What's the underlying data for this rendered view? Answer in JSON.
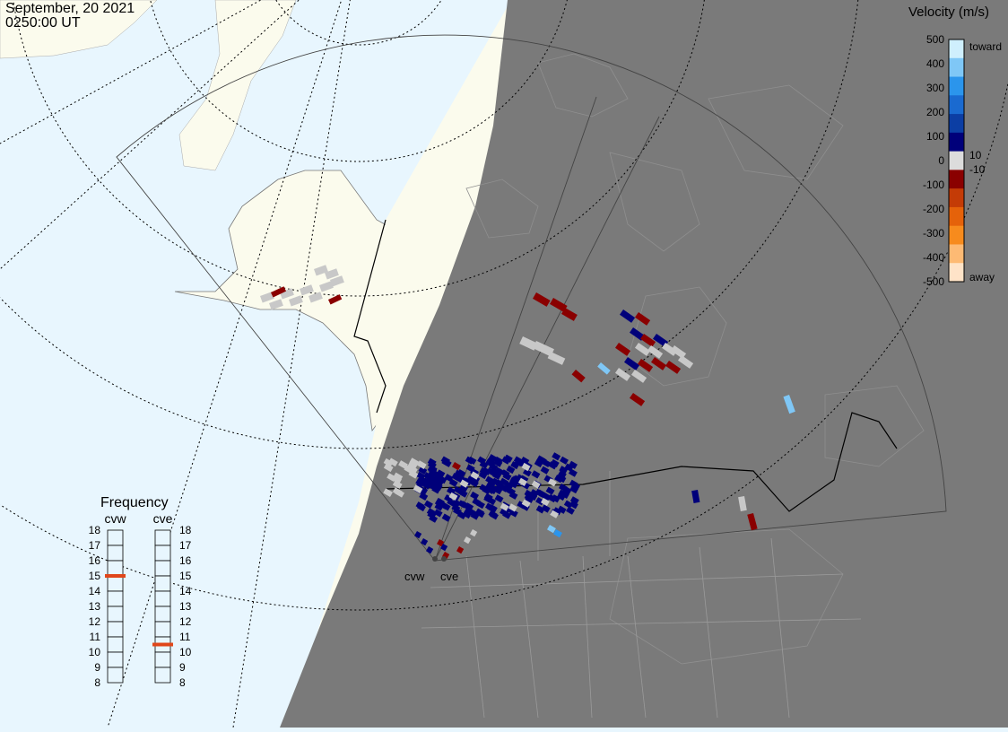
{
  "header": {
    "date": "September, 20 2021",
    "time": "0250:00 UT"
  },
  "legend": {
    "title": "Velocity (m/s)",
    "ticks": [
      "500",
      "400",
      "300",
      "200",
      "100",
      "0",
      "-100",
      "-200",
      "-300",
      "-400",
      "-500"
    ],
    "near_zero": [
      "10",
      "-10"
    ],
    "toward_label": "toward",
    "away_label": "away",
    "colors": [
      "#fee3c8",
      "#fdba74",
      "#f78b1d",
      "#e5620a",
      "#c43b06",
      "#8a0000",
      "#dcdcdc",
      "#00007a",
      "#0c3ea4",
      "#1a6ad0",
      "#2b95ec",
      "#7fc7f6",
      "#cfeffd"
    ]
  },
  "frequency": {
    "title": "Frequency",
    "radars": [
      {
        "name": "cvw",
        "value_mhz": 15
      },
      {
        "name": "cve",
        "value_mhz": 10.5
      }
    ],
    "scale": [
      "18",
      "17",
      "16",
      "15",
      "14",
      "13",
      "12",
      "11",
      "10",
      "9",
      "8"
    ],
    "marker_color": "#e0461a"
  },
  "sites": [
    {
      "name": "cvw"
    },
    {
      "name": "cve"
    }
  ],
  "colors": {
    "ocean": "#e8f6fe",
    "land": "#fbfbed",
    "night": "#7a7a7a",
    "grey_scatter": "#c8c8c8"
  }
}
